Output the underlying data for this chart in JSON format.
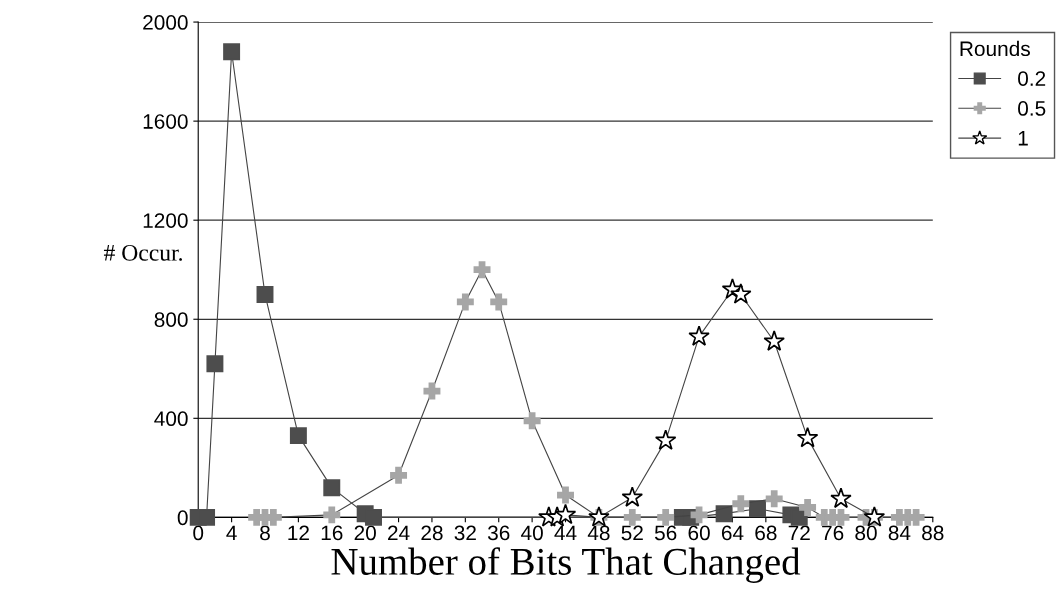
{
  "chart_data": {
    "type": "line",
    "xlabel": "Number of Bits That Changed",
    "ylabel": "# Occur.",
    "legend_title": "Rounds",
    "xlim": [
      0,
      88
    ],
    "xticks": [
      0,
      4,
      8,
      12,
      16,
      20,
      24,
      28,
      32,
      36,
      40,
      44,
      48,
      52,
      56,
      60,
      64,
      68,
      72,
      76,
      80,
      84,
      88
    ],
    "ylim": [
      0,
      2000
    ],
    "yticks": [
      0,
      400,
      800,
      1200,
      1600,
      2000
    ],
    "grid": "y",
    "legend": "top right",
    "series": [
      {
        "name": "0.2",
        "color": "#4d4d4d",
        "marker": "square",
        "x": [
          0,
          1,
          2,
          4,
          8,
          12,
          16,
          20,
          21,
          58,
          59,
          63,
          67,
          71,
          72
        ],
        "values": [
          0,
          0,
          620,
          1880,
          900,
          330,
          120,
          15,
          0,
          0,
          0,
          15,
          35,
          10,
          0
        ]
      },
      {
        "name": "0.5",
        "color": "#a6a6a6",
        "marker": "cross",
        "x": [
          7,
          8,
          9,
          16,
          24,
          28,
          32,
          34,
          36,
          40,
          44,
          48,
          52,
          56,
          60,
          65,
          69,
          73,
          75,
          76,
          77,
          80,
          81,
          84,
          85,
          86
        ],
        "values": [
          0,
          0,
          0,
          10,
          170,
          510,
          870,
          1000,
          870,
          390,
          90,
          0,
          0,
          0,
          10,
          55,
          75,
          40,
          0,
          0,
          0,
          0,
          0,
          0,
          0,
          0
        ]
      },
      {
        "name": "1",
        "color": "#000000",
        "marker": "star",
        "x": [
          42,
          43,
          44,
          48,
          52,
          56,
          60,
          64,
          65,
          69,
          73,
          77,
          81
        ],
        "values": [
          0,
          0,
          10,
          0,
          80,
          310,
          730,
          920,
          900,
          710,
          320,
          75,
          0
        ]
      }
    ]
  }
}
